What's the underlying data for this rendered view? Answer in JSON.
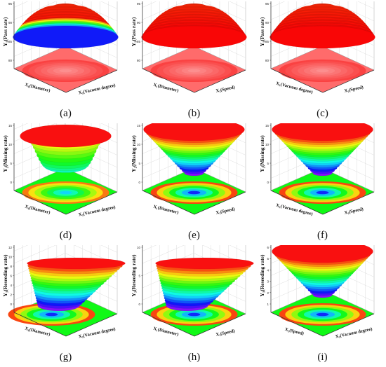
{
  "figure": {
    "panels": [
      {
        "label": "(a)",
        "zlabel": "Y₁(Pass rate)",
        "xlabel": "X₁(Diameter)",
        "ylabel": "X₃(Vacuum degree)",
        "zticks": [
          "80",
          "85",
          "90",
          "95"
        ],
        "shape": "dome-dip",
        "floor": "red-ring"
      },
      {
        "label": "(b)",
        "zlabel": "Y₁(Pass rate)",
        "xlabel": "X₁(Diameter)",
        "ylabel": "X₂(Speed)",
        "zticks": [
          "80",
          "85",
          "90",
          "95"
        ],
        "shape": "dome",
        "floor": "red-ring"
      },
      {
        "label": "(c)",
        "zlabel": "Y₁(Pass rate)",
        "xlabel": "X₃(Vacuum degree)",
        "ylabel": "X₂(Speed)",
        "zticks": [
          "80",
          "85",
          "90",
          "95"
        ],
        "shape": "dome",
        "floor": "red-ring"
      },
      {
        "label": "(d)",
        "zlabel": "Y₂(Missing rate)",
        "xlabel": "X₁(Diameter)",
        "ylabel": "X₃(Vacuum degree)",
        "zticks": [
          "0",
          "5",
          "10",
          "15"
        ],
        "shape": "saddle",
        "floor": "rainbow"
      },
      {
        "label": "(e)",
        "zlabel": "Y₂(Missing rate)",
        "xlabel": "X₁(Diameter)",
        "ylabel": "X₂(Speed)",
        "zticks": [
          "0",
          "5",
          "10",
          "15"
        ],
        "shape": "bowl",
        "floor": "rainbow"
      },
      {
        "label": "(f)",
        "zlabel": "Y₂(Missing rate)",
        "xlabel": "X₃(Vacuum degree)",
        "ylabel": "X₂(Speed)",
        "zticks": [
          "0",
          "5",
          "10",
          "15"
        ],
        "shape": "bowl",
        "floor": "rainbow"
      },
      {
        "label": "(g)",
        "zlabel": "Y₃(Reseeding rate)",
        "xlabel": "X₁(Diameter)",
        "ylabel": "X₃(Vacuum degree)",
        "zticks": [
          "0",
          "2",
          "4",
          "6",
          "8",
          "10",
          "12"
        ],
        "shape": "ramp",
        "floor": "rainbow"
      },
      {
        "label": "(h)",
        "zlabel": "Y₃(Reseeding rate)",
        "xlabel": "X₁(Diameter)",
        "ylabel": "X₂(Speed)",
        "zticks": [
          "0",
          "5",
          "10"
        ],
        "shape": "ramp2",
        "floor": "rainbow"
      },
      {
        "label": "(i)",
        "zlabel": "Y₃(Reseeding rate)",
        "xlabel": "X₂(Speed)",
        "ylabel": "X₃(Vacuum degree)",
        "zticks": [
          "1",
          "2",
          "3",
          "4",
          "5",
          "6"
        ],
        "shape": "bowl",
        "floor": "rainbow"
      }
    ]
  },
  "chart_data": [
    {
      "type": "surface",
      "label": "(a)",
      "zlabel": "Y₁(Pass rate)",
      "xlabel": "X₁(Diameter)",
      "ylabel": "X₃(Vacuum degree)",
      "zlim": [
        80,
        96
      ]
    },
    {
      "type": "surface",
      "label": "(b)",
      "zlabel": "Y₁(Pass rate)",
      "xlabel": "X₁(Diameter)",
      "ylabel": "X₂(Speed)",
      "zlim": [
        80,
        96
      ]
    },
    {
      "type": "surface",
      "label": "(c)",
      "zlabel": "Y₁(Pass rate)",
      "xlabel": "X₃(Vacuum degree)",
      "ylabel": "X₂(Speed)",
      "zlim": [
        80,
        96
      ]
    },
    {
      "type": "surface",
      "label": "(d)",
      "zlabel": "Y₂(Missing rate)",
      "xlabel": "X₁(Diameter)",
      "ylabel": "X₃(Vacuum degree)",
      "zlim": [
        0,
        15
      ]
    },
    {
      "type": "surface",
      "label": "(e)",
      "zlabel": "Y₂(Missing rate)",
      "xlabel": "X₁(Diameter)",
      "ylabel": "X₂(Speed)",
      "zlim": [
        0,
        15
      ]
    },
    {
      "type": "surface",
      "label": "(f)",
      "zlabel": "Y₂(Missing rate)",
      "xlabel": "X₃(Vacuum degree)",
      "ylabel": "X₂(Speed)",
      "zlim": [
        0,
        15
      ]
    },
    {
      "type": "surface",
      "label": "(g)",
      "zlabel": "Y₃(Reseeding rate)",
      "xlabel": "X₁(Diameter)",
      "ylabel": "X₃(Vacuum degree)",
      "zlim": [
        0,
        12
      ]
    },
    {
      "type": "surface",
      "label": "(h)",
      "zlabel": "Y₃(Reseeding rate)",
      "xlabel": "X₁(Diameter)",
      "ylabel": "X₂(Speed)",
      "zlim": [
        0,
        12
      ]
    },
    {
      "type": "surface",
      "label": "(i)",
      "zlabel": "Y₃(Reseeding rate)",
      "xlabel": "X₂(Speed)",
      "ylabel": "X₃(Vacuum degree)",
      "zlim": [
        1,
        6
      ]
    }
  ]
}
